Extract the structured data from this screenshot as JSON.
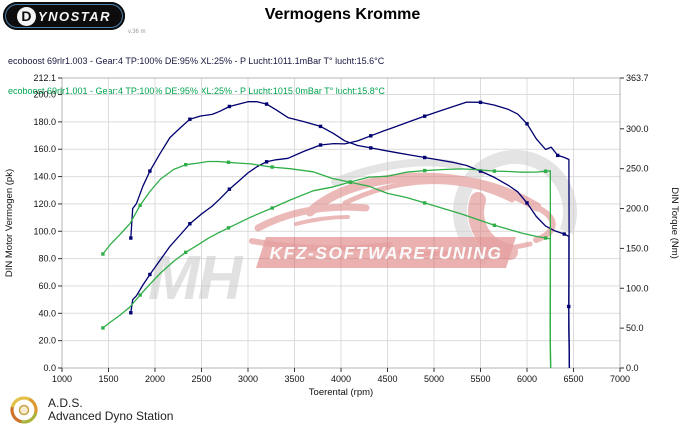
{
  "header": {
    "logo_first": "D",
    "logo_rest": "YNOSTAR",
    "logo_note": "v.36 m",
    "title": "Vermogens Kromme"
  },
  "legend": {
    "runs": [
      {
        "label": "ecoboost 69rlr1.003 - Gear:4 TP:100% DE:95% XL:25% - P Lucht:1011.1mBar T° lucht:15.6°C",
        "color": "#16163f"
      },
      {
        "label": "ecoboost 69rlr1.001 - Gear:4 TP:100% DE:95% XL:25% - P Lucht:1015.0mBar T° lucht:15.8°C",
        "color": "#00a44e"
      }
    ]
  },
  "watermark": {
    "mh": "MH",
    "banner": "KFZ-SOFTWARETUNING",
    "red": "#d25555",
    "light_red": "#dd8080",
    "gray": "#cfcfcf",
    "banner_text_color": "#f7f7f7"
  },
  "footer": {
    "abbr": "A.D.S.",
    "name": "Advanced Dyno Station"
  },
  "chart_data": {
    "type": "line",
    "title": "Vermogens Kromme",
    "xlabel": "Toerental (rpm)",
    "ylabel_left": "DIN Motor Vermogen (pk)",
    "ylabel_right": "DIN Torque (Nm)",
    "x_range": [
      1000,
      7000
    ],
    "x_ticks": [
      1000,
      1500,
      2000,
      2500,
      3000,
      3500,
      4000,
      4500,
      5000,
      5500,
      6000,
      6500,
      7000
    ],
    "y_left_max": 212.1,
    "y_left_ticks": [
      212.1,
      200.0,
      180.0,
      160.0,
      140.0,
      120.0,
      100.0,
      80.0,
      60.0,
      40.0,
      20.0,
      0.0
    ],
    "y_right_max": 363.7,
    "y_right_ticks": [
      363.7,
      300.0,
      250.0,
      200.0,
      150.0,
      100.0,
      50.0,
      0.0
    ],
    "grid": true,
    "legend_position": "top-left",
    "colors": {
      "grid": "#dcdcdc",
      "border": "#b4b4b4",
      "tick_text": "#111111"
    },
    "series": [
      {
        "name": "ecoboost 69rlr1.003 DIN Motor Vermogen (pk)",
        "slug": "curve-power-003",
        "axis": "left",
        "unit": "pk",
        "color": "#000070",
        "marker_every": 4,
        "points": [
          [
            1740,
            40.4
          ],
          [
            1760,
            50.0
          ],
          [
            1800,
            52.8
          ],
          [
            1870,
            60.7
          ],
          [
            1945,
            68.4
          ],
          [
            2050,
            78.3
          ],
          [
            2160,
            88.9
          ],
          [
            2270,
            97.3
          ],
          [
            2375,
            105.5
          ],
          [
            2490,
            112.1
          ],
          [
            2615,
            118.4
          ],
          [
            2700,
            123.8
          ],
          [
            2800,
            130.8
          ],
          [
            2900,
            136.7
          ],
          [
            3000,
            142.7
          ],
          [
            3100,
            147.4
          ],
          [
            3200,
            150.8
          ],
          [
            3300,
            152.3
          ],
          [
            3430,
            153.4
          ],
          [
            3600,
            158.4
          ],
          [
            3780,
            163.1
          ],
          [
            3920,
            164.1
          ],
          [
            4040,
            163.9
          ],
          [
            4180,
            166.1
          ],
          [
            4320,
            169.8
          ],
          [
            4460,
            173.4
          ],
          [
            4600,
            176.8
          ],
          [
            4750,
            180.6
          ],
          [
            4900,
            184.2
          ],
          [
            5050,
            187.7
          ],
          [
            5200,
            191.0
          ],
          [
            5350,
            194.5
          ],
          [
            5500,
            194.3
          ],
          [
            5650,
            192.3
          ],
          [
            5800,
            189.1
          ],
          [
            5900,
            185.7
          ],
          [
            6000,
            178.6
          ],
          [
            6100,
            167.6
          ],
          [
            6200,
            159.8
          ],
          [
            6260,
            161.5
          ],
          [
            6330,
            155.5
          ],
          [
            6400,
            154.0
          ],
          [
            6450,
            152.5
          ],
          [
            6453,
            100.0
          ],
          [
            6449,
            45.0
          ],
          [
            6456,
            0.0
          ]
        ]
      },
      {
        "name": "ecoboost 69rlr1.003 DIN Torque (Nm)",
        "slug": "curve-torque-003",
        "axis": "right",
        "unit": "Nm",
        "color": "#000070",
        "marker_every": 4,
        "points": [
          [
            1740,
            163
          ],
          [
            1760,
            200
          ],
          [
            1800,
            206
          ],
          [
            1870,
            228
          ],
          [
            1945,
            247
          ],
          [
            2050,
            268
          ],
          [
            2160,
            289
          ],
          [
            2270,
            301
          ],
          [
            2375,
            312
          ],
          [
            2490,
            316
          ],
          [
            2615,
            318
          ],
          [
            2700,
            322
          ],
          [
            2800,
            328
          ],
          [
            2900,
            331
          ],
          [
            3000,
            334
          ],
          [
            3100,
            334
          ],
          [
            3200,
            331
          ],
          [
            3300,
            324
          ],
          [
            3430,
            314
          ],
          [
            3600,
            309
          ],
          [
            3780,
            303
          ],
          [
            3920,
            294
          ],
          [
            4040,
            285
          ],
          [
            4180,
            279
          ],
          [
            4320,
            276
          ],
          [
            4460,
            273
          ],
          [
            4600,
            270
          ],
          [
            4750,
            267
          ],
          [
            4900,
            264
          ],
          [
            5050,
            261
          ],
          [
            5200,
            258
          ],
          [
            5350,
            254
          ],
          [
            5500,
            247
          ],
          [
            5650,
            239
          ],
          [
            5800,
            229
          ],
          [
            5900,
            221
          ],
          [
            6000,
            207
          ],
          [
            6100,
            190
          ],
          [
            6200,
            178
          ],
          [
            6300,
            172
          ],
          [
            6400,
            168
          ],
          [
            6450,
            165
          ],
          [
            6452,
            110
          ],
          [
            6449,
            50
          ],
          [
            6456,
            0
          ]
        ]
      },
      {
        "name": "ecoboost 69rlr1.001 DIN Motor Vermogen (pk)",
        "slug": "curve-power-001",
        "axis": "left",
        "unit": "pk",
        "color": "#2fae47",
        "marker_every": 4,
        "points": [
          [
            1440,
            29.3
          ],
          [
            1520,
            33.6
          ],
          [
            1620,
            38.5
          ],
          [
            1730,
            44.6
          ],
          [
            1840,
            53.4
          ],
          [
            1950,
            61.6
          ],
          [
            2060,
            69.5
          ],
          [
            2200,
            78.0
          ],
          [
            2330,
            84.6
          ],
          [
            2460,
            90.0
          ],
          [
            2570,
            94.8
          ],
          [
            2680,
            98.8
          ],
          [
            2790,
            102.5
          ],
          [
            2900,
            106.1
          ],
          [
            3030,
            110.4
          ],
          [
            3140,
            113.6
          ],
          [
            3260,
            117.0
          ],
          [
            3450,
            122.8
          ],
          [
            3700,
            129.6
          ],
          [
            3900,
            132.2
          ],
          [
            4100,
            136.0
          ],
          [
            4300,
            139.6
          ],
          [
            4500,
            140.3
          ],
          [
            4700,
            143.2
          ],
          [
            4900,
            144.4
          ],
          [
            5100,
            145.2
          ],
          [
            5300,
            145.6
          ],
          [
            5500,
            144.9
          ],
          [
            5650,
            144.0
          ],
          [
            5800,
            143.7
          ],
          [
            5950,
            143.2
          ],
          [
            6100,
            143.3
          ],
          [
            6200,
            143.9
          ],
          [
            6250,
            144.2
          ],
          [
            6252,
            90.0
          ],
          [
            6248,
            30.0
          ],
          [
            6254,
            0.0
          ]
        ]
      },
      {
        "name": "ecoboost 69rlr1.001 DIN Torque (Nm)",
        "slug": "curve-torque-001",
        "axis": "right",
        "unit": "Nm",
        "color": "#2fae47",
        "marker_every": 4,
        "points": [
          [
            1440,
            143
          ],
          [
            1520,
            155
          ],
          [
            1620,
            167
          ],
          [
            1730,
            181
          ],
          [
            1840,
            204
          ],
          [
            1950,
            222
          ],
          [
            2060,
            237
          ],
          [
            2200,
            249
          ],
          [
            2330,
            255
          ],
          [
            2460,
            257
          ],
          [
            2570,
            259
          ],
          [
            2680,
            259
          ],
          [
            2790,
            258
          ],
          [
            2900,
            257
          ],
          [
            3030,
            256
          ],
          [
            3140,
            254
          ],
          [
            3260,
            252
          ],
          [
            3450,
            250
          ],
          [
            3700,
            246
          ],
          [
            3900,
            238
          ],
          [
            4100,
            233
          ],
          [
            4300,
            228
          ],
          [
            4500,
            219
          ],
          [
            4700,
            214
          ],
          [
            4900,
            207
          ],
          [
            5100,
            200
          ],
          [
            5300,
            193
          ],
          [
            5500,
            185
          ],
          [
            5650,
            179
          ],
          [
            5800,
            174
          ],
          [
            5950,
            169
          ],
          [
            6100,
            165
          ],
          [
            6200,
            163
          ],
          [
            6250,
            162
          ],
          [
            6252,
            100
          ],
          [
            6249,
            40
          ],
          [
            6255,
            0
          ]
        ]
      }
    ]
  }
}
